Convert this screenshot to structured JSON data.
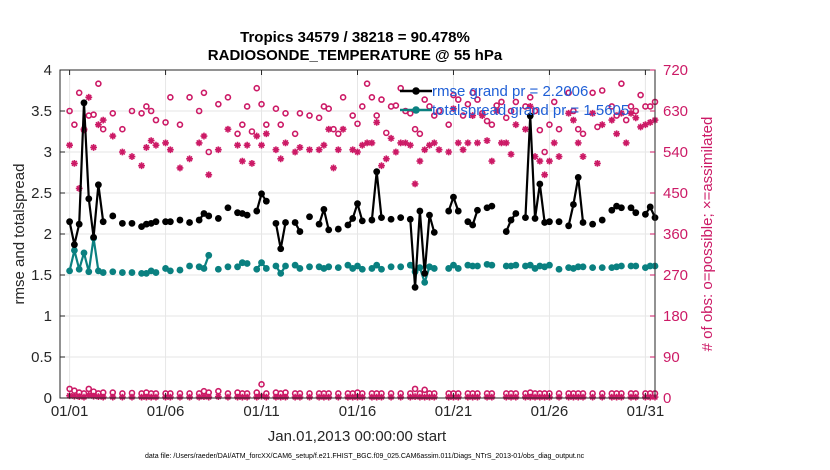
{
  "chart_data": {
    "type": "line",
    "title": "Tropics 34579 / 38218 = 90.478%",
    "subtitle": "RADIOSONDE_TEMPERATURE @ 55 hPa",
    "xlabel": "Jan.01,2013 00:00:00 start",
    "ylabel": "rmse and totalspread",
    "y2label": "# of obs: o=possible; ×=assimilated",
    "footer": "data file: /Users/raeder/DAI/ATM_forcXX/CAM6_setup/f.e21.FHIST_BGC.f09_025.CAM6assim.011/Diags_NTrS_2013-01/obs_diag_output.nc",
    "xlim": [
      0.5,
      31.5
    ],
    "ylim": [
      0,
      4
    ],
    "y2lim": [
      0,
      720
    ],
    "xticks": [
      1,
      6,
      11,
      16,
      21,
      26,
      31
    ],
    "xtick_labels": [
      "01/01",
      "01/06",
      "01/11",
      "01/16",
      "01/21",
      "01/26",
      "01/31"
    ],
    "yticks": [
      0,
      0.5,
      1,
      1.5,
      2,
      2.5,
      3,
      3.5,
      4
    ],
    "ytick_labels": [
      "0",
      "0.5",
      "1",
      "1.5",
      "2",
      "2.5",
      "3",
      "3.5",
      "4"
    ],
    "y2ticks": [
      0,
      90,
      180,
      270,
      360,
      450,
      540,
      630,
      720
    ],
    "y2tick_labels": [
      "0",
      "90",
      "180",
      "270",
      "360",
      "450",
      "540",
      "630",
      "720"
    ],
    "legend_position": "top-right",
    "x": [
      1.0,
      1.25,
      1.5,
      1.75,
      2.0,
      2.25,
      2.5,
      2.75,
      3.0,
      3.25,
      3.5,
      3.75,
      4.0,
      4.25,
      4.5,
      4.75,
      5.0,
      5.25,
      5.5,
      5.75,
      6.0,
      6.25,
      6.5,
      6.75,
      7.0,
      7.25,
      7.5,
      7.75,
      8.0,
      8.25,
      8.5,
      8.75,
      9.0,
      9.25,
      9.5,
      9.75,
      10.0,
      10.25,
      10.5,
      10.75,
      11.0,
      11.25,
      11.5,
      11.75,
      12.0,
      12.25,
      12.5,
      12.75,
      13.0,
      13.25,
      13.5,
      13.75,
      14.0,
      14.25,
      14.5,
      14.75,
      15.0,
      15.25,
      15.5,
      15.75,
      16.0,
      16.25,
      16.5,
      16.75,
      17.0,
      17.25,
      17.5,
      17.75,
      18.0,
      18.25,
      18.5,
      18.75,
      19.0,
      19.25,
      19.5,
      19.75,
      20.0,
      20.25,
      20.5,
      20.75,
      21.0,
      21.25,
      21.5,
      21.75,
      22.0,
      22.25,
      22.5,
      22.75,
      23.0,
      23.25,
      23.5,
      23.75,
      24.0,
      24.25,
      24.5,
      24.75,
      25.0,
      25.25,
      25.5,
      25.75,
      26.0,
      26.25,
      26.5,
      26.75,
      27.0,
      27.25,
      27.5,
      27.75,
      28.0,
      28.25,
      28.5,
      28.75,
      29.0,
      29.25,
      29.5,
      29.75,
      30.0,
      30.25,
      30.5,
      30.75,
      31.0,
      31.25,
      31.5
    ],
    "series": [
      {
        "name": "rmse",
        "legend": "rmse grand pr = 2.2006",
        "color": "#000000",
        "values": [
          2.15,
          1.87,
          2.12,
          3.6,
          2.43,
          1.96,
          2.6,
          2.15,
          null,
          2.22,
          null,
          2.13,
          null,
          2.13,
          null,
          2.09,
          2.12,
          2.13,
          2.15,
          null,
          2.15,
          2.15,
          null,
          2.17,
          null,
          2.14,
          null,
          2.17,
          2.25,
          2.22,
          null,
          2.19,
          null,
          2.32,
          null,
          2.26,
          2.25,
          2.23,
          null,
          2.28,
          2.49,
          2.4,
          null,
          2.13,
          1.82,
          2.14,
          null,
          2.14,
          2.03,
          null,
          2.21,
          null,
          2.12,
          2.3,
          2.05,
          null,
          2.06,
          null,
          2.11,
          2.19,
          2.37,
          2.16,
          null,
          2.17,
          2.76,
          2.2,
          null,
          2.18,
          null,
          2.2,
          null,
          2.18,
          1.35,
          2.28,
          1.52,
          2.23,
          2.02,
          null,
          null,
          2.28,
          2.45,
          2.28,
          null,
          2.15,
          2.11,
          2.29,
          null,
          2.32,
          2.34,
          null,
          null,
          2.03,
          2.17,
          2.25,
          null,
          2.2,
          3.44,
          2.19,
          2.61,
          2.14,
          2.15,
          null,
          2.15,
          null,
          2.1,
          2.36,
          2.69,
          2.14,
          null,
          2.12,
          null,
          2.17,
          null,
          2.29,
          2.34,
          2.32,
          null,
          2.32,
          2.26,
          null,
          2.24,
          2.33,
          2.2
        ]
      },
      {
        "name": "totalspread",
        "legend": "totalspread grand pr = 1.5605",
        "color": "#0a8080",
        "values": [
          1.55,
          1.8,
          1.57,
          1.77,
          1.54,
          1.95,
          1.55,
          1.53,
          null,
          1.54,
          null,
          1.53,
          null,
          1.53,
          null,
          1.52,
          1.52,
          1.55,
          1.53,
          null,
          1.58,
          1.55,
          null,
          1.56,
          null,
          1.61,
          null,
          1.6,
          1.58,
          1.74,
          null,
          1.57,
          null,
          1.6,
          null,
          1.6,
          1.65,
          1.64,
          null,
          1.57,
          1.65,
          1.58,
          null,
          1.61,
          1.52,
          1.61,
          null,
          1.62,
          1.58,
          null,
          1.6,
          null,
          1.6,
          1.58,
          1.6,
          null,
          1.59,
          null,
          1.62,
          1.58,
          1.61,
          1.57,
          null,
          1.58,
          1.62,
          1.57,
          null,
          1.6,
          null,
          1.6,
          null,
          1.62,
          1.54,
          1.59,
          1.41,
          1.6,
          1.58,
          null,
          null,
          1.58,
          1.62,
          1.58,
          null,
          1.62,
          1.61,
          1.61,
          null,
          1.63,
          1.62,
          null,
          null,
          1.61,
          1.61,
          1.62,
          null,
          1.61,
          1.62,
          1.58,
          1.61,
          1.6,
          1.62,
          null,
          1.57,
          null,
          1.59,
          1.58,
          1.6,
          1.6,
          null,
          1.59,
          null,
          1.59,
          null,
          1.59,
          1.6,
          1.61,
          null,
          1.61,
          1.61,
          null,
          1.59,
          1.61,
          1.61
        ]
      },
      {
        "name": "obs possible",
        "marker": "o",
        "color": "#cc1a66",
        "axis": "right",
        "values": [
          630,
          600,
          670,
          588,
          620,
          622,
          690,
          590,
          null,
          625,
          null,
          590,
          null,
          630,
          null,
          625,
          640,
          630,
          610,
          null,
          605,
          660,
          null,
          600,
          null,
          660,
          null,
          630,
          670,
          540,
          null,
          645,
          null,
          660,
          null,
          580,
          600,
          640,
          585,
          680,
          645,
          600,
          null,
          635,
          600,
          625,
          null,
          580,
          625,
          null,
          620,
          null,
          615,
          640,
          635,
          590,
          580,
          660,
          null,
          620,
          602,
          640,
          690,
          660,
          620,
          655,
          582,
          640,
          642,
          680,
          630,
          625,
          590,
          580,
          655,
          640,
          620,
          630,
          null,
          600,
          665,
          655,
          620,
          645,
          670,
          655,
          625,
          608,
          600,
          642,
          650,
          615,
          630,
          650,
          null,
          640,
          660,
          630,
          588,
          540,
          600,
          650,
          590,
          null,
          670,
          630,
          590,
          580,
          null,
          670,
          595,
          675,
          null,
          640,
          620,
          690,
          610,
          640,
          630,
          665,
          640,
          640,
          650
        ]
      },
      {
        "name": "obs assimilated",
        "marker": "*",
        "color": "#cc1a66",
        "axis": "right",
        "values": [
          555,
          515,
          460,
          590,
          660,
          550,
          600,
          610,
          null,
          575,
          null,
          540,
          null,
          530,
          null,
          510,
          550,
          565,
          555,
          null,
          560,
          545,
          null,
          505,
          null,
          525,
          null,
          560,
          575,
          490,
          null,
          545,
          null,
          590,
          null,
          555,
          520,
          555,
          515,
          575,
          555,
          580,
          null,
          545,
          525,
          560,
          null,
          540,
          550,
          null,
          545,
          null,
          545,
          555,
          590,
          505,
          545,
          590,
          null,
          545,
          540,
          555,
          560,
          560,
          605,
          510,
          525,
          570,
          540,
          560,
          560,
          555,
          470,
          520,
          545,
          555,
          560,
          545,
          null,
          540,
          635,
          560,
          545,
          560,
          620,
          560,
          620,
          565,
          520,
          630,
          560,
          560,
          535,
          600,
          null,
          590,
          640,
          530,
          520,
          490,
          520,
          560,
          530,
          null,
          625,
          610,
          560,
          530,
          null,
          625,
          515,
          600,
          null,
          610,
          580,
          625,
          560,
          625,
          615,
          595,
          600,
          605,
          610
        ]
      },
      {
        "name": "obs possible near zero",
        "marker": "o",
        "color": "#cc1a66",
        "axis": "right",
        "values": [
          20,
          16,
          12,
          10,
          20,
          14,
          10,
          12,
          null,
          12,
          null,
          10,
          null,
          11,
          null,
          10,
          12,
          10,
          10,
          null,
          10,
          10,
          null,
          10,
          null,
          10,
          null,
          10,
          15,
          12,
          null,
          15,
          null,
          10,
          null,
          12,
          10,
          10,
          null,
          12,
          30,
          10,
          null,
          12,
          10,
          12,
          null,
          10,
          10,
          null,
          10,
          null,
          10,
          10,
          10,
          null,
          10,
          null,
          10,
          10,
          12,
          10,
          null,
          10,
          10,
          10,
          null,
          10,
          null,
          10,
          null,
          10,
          20,
          10,
          18,
          10,
          10,
          null,
          null,
          10,
          10,
          10,
          null,
          10,
          10,
          10,
          null,
          10,
          10,
          null,
          null,
          10,
          10,
          10,
          null,
          10,
          12,
          10,
          10,
          10,
          10,
          null,
          10,
          null,
          10,
          10,
          10,
          10,
          null,
          10,
          null,
          10,
          null,
          10,
          10,
          10,
          null,
          10,
          10,
          null,
          10,
          10,
          10
        ]
      },
      {
        "name": "obs assimilated near zero",
        "marker": "*",
        "color": "#cc1a66",
        "axis": "right",
        "values": [
          5,
          4,
          3,
          2,
          6,
          4,
          3,
          2,
          null,
          2,
          null,
          2,
          null,
          2,
          null,
          2,
          2,
          2,
          2,
          null,
          2,
          2,
          null,
          2,
          null,
          2,
          null,
          2,
          3,
          2,
          null,
          3,
          null,
          2,
          null,
          2,
          2,
          2,
          null,
          2,
          4,
          2,
          null,
          2,
          2,
          2,
          null,
          2,
          2,
          null,
          2,
          null,
          2,
          2,
          2,
          null,
          2,
          null,
          2,
          2,
          2,
          2,
          null,
          2,
          2,
          2,
          null,
          2,
          null,
          2,
          null,
          2,
          3,
          2,
          2,
          2,
          2,
          null,
          null,
          2,
          2,
          2,
          null,
          2,
          2,
          2,
          null,
          2,
          2,
          null,
          null,
          2,
          2,
          2,
          null,
          2,
          2,
          2,
          2,
          2,
          2,
          null,
          2,
          null,
          2,
          2,
          2,
          2,
          null,
          2,
          null,
          2,
          null,
          2,
          2,
          2,
          null,
          2,
          2,
          null,
          2,
          2,
          2
        ]
      }
    ]
  }
}
